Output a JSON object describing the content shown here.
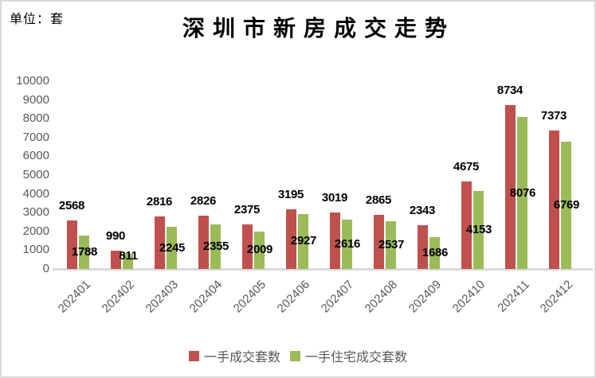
{
  "chart_data": {
    "type": "bar",
    "title": "深圳市新房成交走势",
    "unit_label": "单位：套",
    "categories": [
      "202401",
      "202402",
      "202403",
      "202404",
      "202405",
      "202406",
      "202407",
      "202408",
      "202409",
      "202410",
      "202411",
      "202412"
    ],
    "series": [
      {
        "name": "一手成交套数",
        "color": "#C0504D",
        "values": [
          2568,
          990,
          2816,
          2826,
          2375,
          3195,
          3019,
          2865,
          2343,
          4675,
          8734,
          7373
        ]
      },
      {
        "name": "一手住宅成交套数",
        "color": "#9BBB59",
        "values": [
          1788,
          811,
          2245,
          2355,
          2009,
          2927,
          2616,
          2537,
          1686,
          4153,
          8076,
          6769
        ]
      }
    ],
    "ylim": [
      0,
      10000
    ],
    "ytick_interval": 1000,
    "yticks": [
      0,
      1000,
      2000,
      3000,
      4000,
      5000,
      6000,
      7000,
      8000,
      9000,
      10000
    ],
    "grid": false,
    "legend_position": "bottom",
    "data_labels": true,
    "colors": {
      "axis_text": "#595959",
      "data_label_text": "#000000",
      "baseline": "#D9D9D9",
      "border": "#D9D9D9",
      "background": "#FFFFFF"
    }
  }
}
